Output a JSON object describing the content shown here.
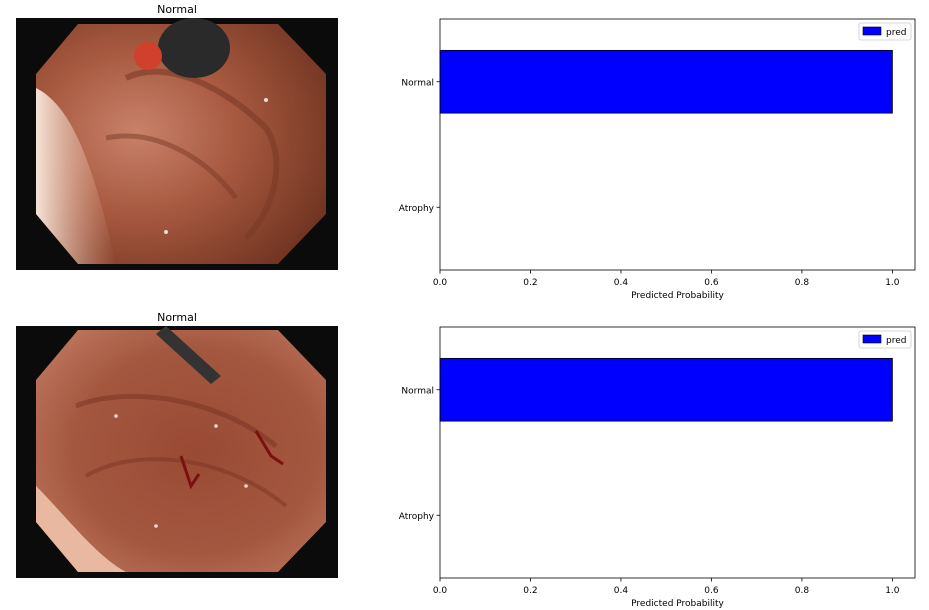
{
  "panels": [
    {
      "title": "Normal",
      "chart_data": {
        "type": "bar",
        "orientation": "horizontal",
        "categories": [
          "Normal",
          "Atrophy"
        ],
        "series": [
          {
            "name": "pred",
            "values": [
              1.0,
              0.0
            ],
            "color": "#0000ff"
          }
        ],
        "xlabel": "Predicted Probability",
        "ylabel": "",
        "xlim": [
          0,
          1.05
        ],
        "xticks": [
          "0.0",
          "0.2",
          "0.4",
          "0.6",
          "0.8",
          "1.0"
        ],
        "grid": false,
        "legend": "top-right"
      }
    },
    {
      "title": "Normal",
      "chart_data": {
        "type": "bar",
        "orientation": "horizontal",
        "categories": [
          "Normal",
          "Atrophy"
        ],
        "series": [
          {
            "name": "pred",
            "values": [
              1.0,
              0.0
            ],
            "color": "#0000ff"
          }
        ],
        "xlabel": "Predicted Probability",
        "ylabel": "",
        "xlim": [
          0,
          1.05
        ],
        "xticks": [
          "0.0",
          "0.2",
          "0.4",
          "0.6",
          "0.8",
          "1.0"
        ],
        "grid": false,
        "legend": "top-right"
      }
    }
  ]
}
